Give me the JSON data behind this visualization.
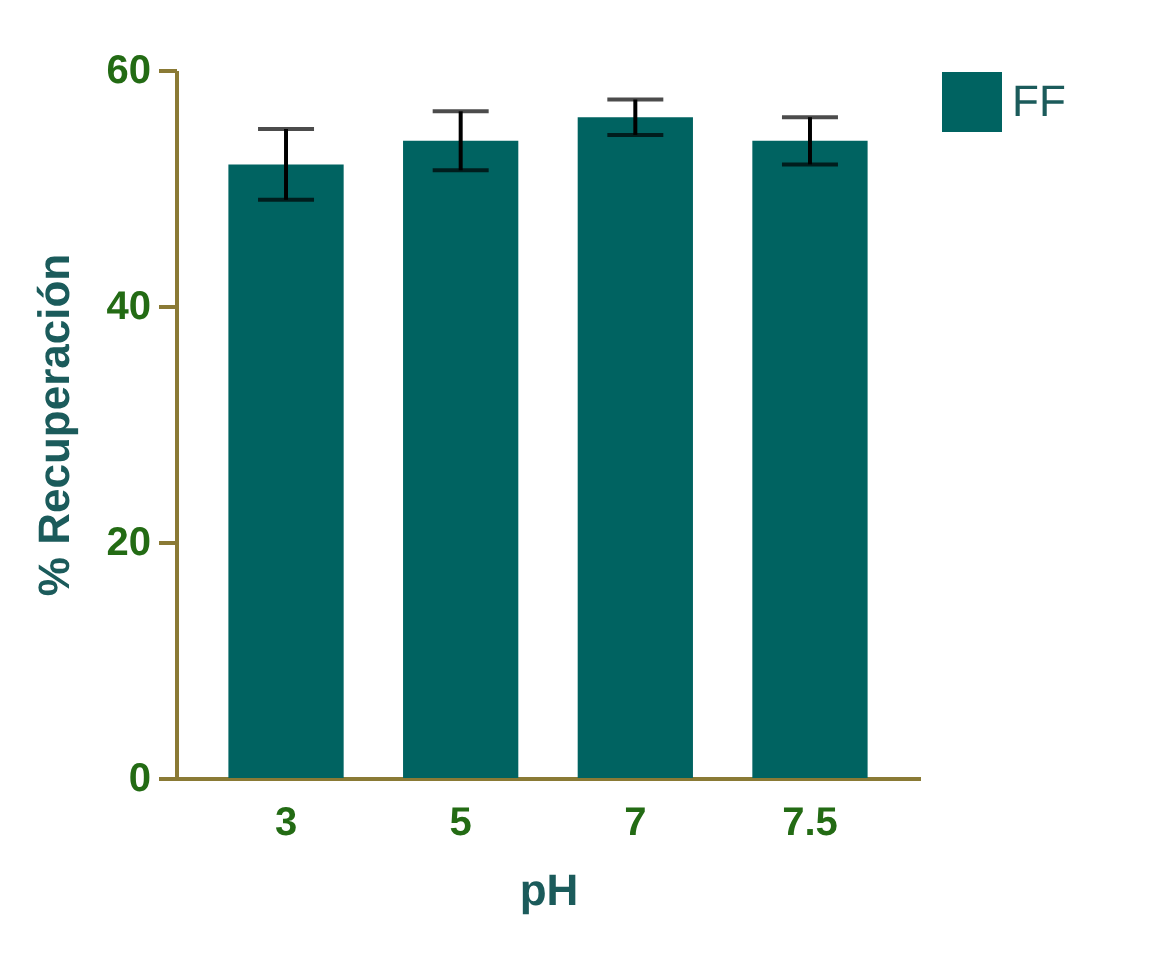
{
  "chart_data": {
    "type": "bar",
    "xlabel": "pH",
    "ylabel": "% Recuperación",
    "categories": [
      "3",
      "5",
      "7",
      "7.5"
    ],
    "series": [
      {
        "name": "FF",
        "color": "#006361",
        "values": [
          52,
          54,
          56,
          54
        ],
        "errors": [
          3,
          2.5,
          1.5,
          2
        ]
      }
    ],
    "ylim": [
      0,
      60
    ],
    "yticks": [
      0,
      20,
      40,
      60
    ],
    "legend": "top right",
    "grid": false
  }
}
